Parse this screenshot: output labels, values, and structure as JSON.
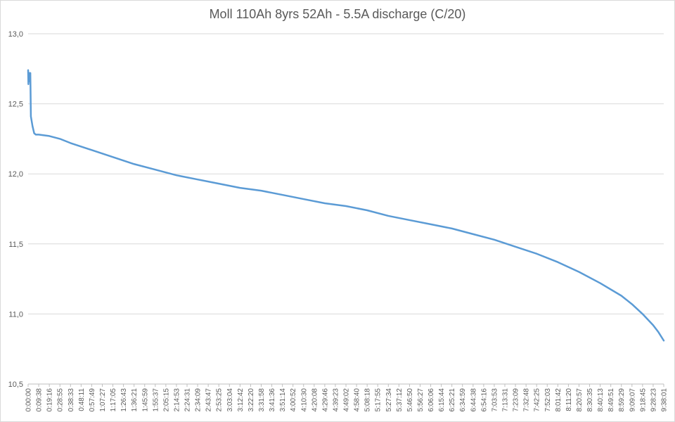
{
  "chart_data": {
    "type": "line",
    "title": "Moll 110Ah 8yrs 52Ah - 5.5A discharge (C/20)",
    "xlabel": "",
    "ylabel": "",
    "ylim": [
      10.5,
      13.0
    ],
    "y_ticks": [
      "10,5",
      "11,0",
      "11,5",
      "12,0",
      "12,5",
      "13,0"
    ],
    "x_ticks": [
      "0:00:00",
      "0:09:38",
      "0:19:16",
      "0:28:55",
      "0:38:33",
      "0:48:11",
      "0:57:49",
      "1:07:27",
      "1:17:05",
      "1:26:43",
      "1:36:21",
      "1:45:59",
      "1:55:37",
      "2:05:15",
      "2:14:53",
      "2:24:31",
      "2:34:09",
      "2:43:47",
      "2:53:25",
      "3:03:04",
      "3:12:42",
      "3:22:20",
      "3:31:58",
      "3:41:36",
      "3:51:14",
      "4:00:52",
      "4:10:30",
      "4:20:08",
      "4:29:46",
      "4:39:23",
      "4:49:02",
      "4:58:40",
      "5:08:18",
      "5:17:55",
      "5:27:34",
      "5:37:12",
      "5:46:50",
      "5:56:27",
      "6:06:06",
      "6:15:44",
      "6:25:21",
      "6:34:59",
      "6:44:38",
      "6:54:16",
      "7:03:53",
      "7:13:31",
      "7:23:09",
      "7:32:48",
      "7:42:25",
      "7:52:03",
      "8:01:42",
      "8:11:20",
      "8:20:57",
      "8:30:35",
      "8:40:13",
      "8:49:51",
      "8:59:29",
      "9:09:07",
      "9:18:45",
      "9:28:23",
      "9:38:01"
    ],
    "grid": true,
    "legend": "none",
    "series": [
      {
        "color": "#5b9bd5",
        "points": [
          [
            "0:00:00",
            12.74
          ],
          [
            "0:00:15",
            12.64
          ],
          [
            "0:00:30",
            12.7
          ],
          [
            "0:00:45",
            12.66
          ],
          [
            "0:01:00",
            12.72
          ],
          [
            "0:01:30",
            12.66
          ],
          [
            "0:02:00",
            12.72
          ],
          [
            "0:02:30",
            12.41
          ],
          [
            "0:04:00",
            12.34
          ],
          [
            "0:05:30",
            12.29
          ],
          [
            "0:07:00",
            12.28
          ],
          [
            "0:09:38",
            12.28
          ],
          [
            "0:19:16",
            12.27
          ],
          [
            "0:28:55",
            12.25
          ],
          [
            "0:38:33",
            12.22
          ],
          [
            "0:57:49",
            12.17
          ],
          [
            "1:17:05",
            12.12
          ],
          [
            "1:36:21",
            12.07
          ],
          [
            "1:55:37",
            12.03
          ],
          [
            "2:14:53",
            11.99
          ],
          [
            "2:34:09",
            11.96
          ],
          [
            "2:53:25",
            11.93
          ],
          [
            "3:12:42",
            11.9
          ],
          [
            "3:31:58",
            11.88
          ],
          [
            "3:51:14",
            11.85
          ],
          [
            "4:10:30",
            11.82
          ],
          [
            "4:29:46",
            11.79
          ],
          [
            "4:49:02",
            11.77
          ],
          [
            "5:08:18",
            11.74
          ],
          [
            "5:27:34",
            11.7
          ],
          [
            "5:46:50",
            11.67
          ],
          [
            "6:06:06",
            11.64
          ],
          [
            "6:25:21",
            11.61
          ],
          [
            "6:44:38",
            11.57
          ],
          [
            "7:03:53",
            11.53
          ],
          [
            "7:23:09",
            11.48
          ],
          [
            "7:42:25",
            11.43
          ],
          [
            "8:01:42",
            11.37
          ],
          [
            "8:20:57",
            11.3
          ],
          [
            "8:40:13",
            11.22
          ],
          [
            "8:59:29",
            11.13
          ],
          [
            "9:09:07",
            11.07
          ],
          [
            "9:18:45",
            11.0
          ],
          [
            "9:28:23",
            10.92
          ],
          [
            "9:33:12",
            10.87
          ],
          [
            "9:38:01",
            10.81
          ]
        ]
      }
    ]
  }
}
